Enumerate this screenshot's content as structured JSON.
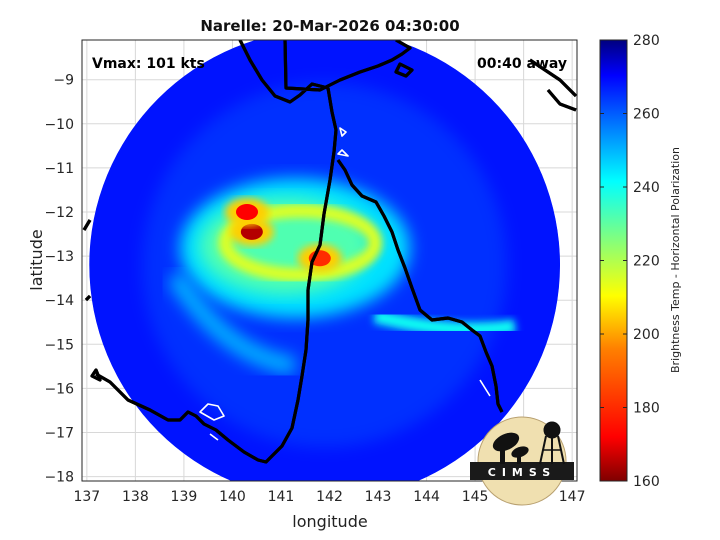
{
  "chart_data": {
    "type": "heatmap",
    "title": "Narelle: 20-Mar-2026 04:30:00",
    "xlabel": "longitude",
    "ylabel": "latitude",
    "xlim": [
      136.9,
      147.1
    ],
    "ylim": [
      -18.1,
      -8.1
    ],
    "xticks": [
      137,
      138,
      139,
      140,
      141,
      142,
      143,
      144,
      145,
      146,
      147
    ],
    "yticks": [
      -18,
      -17,
      -16,
      -15,
      -14,
      -13,
      -12,
      -11,
      -10,
      -9
    ],
    "grid": true,
    "annotation_left": "Vmax: 101 kts",
    "annotation_right": "00:40 away",
    "colorbar": {
      "label": "Brightness Temp - Horizontal Polarization",
      "min": 160,
      "max": 280,
      "ticks": [
        160,
        180,
        200,
        220,
        240,
        260,
        280
      ]
    },
    "swath": {
      "center_lon": 141.9,
      "center_lat": -13.2,
      "radius_deg": 4.85
    },
    "storm_center": {
      "lon": 141.7,
      "lat": -13.0
    },
    "features": [
      {
        "name": "deep-convection-west-1",
        "lon": 140.4,
        "lat": -12.45,
        "tb": 165
      },
      {
        "name": "deep-convection-west-2",
        "lon": 140.3,
        "lat": -12.0,
        "tb": 172
      },
      {
        "name": "deep-convection-east",
        "lon": 141.8,
        "lat": -13.05,
        "tb": 180
      },
      {
        "name": "inner-core-ring",
        "lon": 141.4,
        "lat": -12.7,
        "tb": 215
      },
      {
        "name": "background-ocean",
        "tb": 265
      }
    ],
    "logo_text": "CIMSS"
  }
}
